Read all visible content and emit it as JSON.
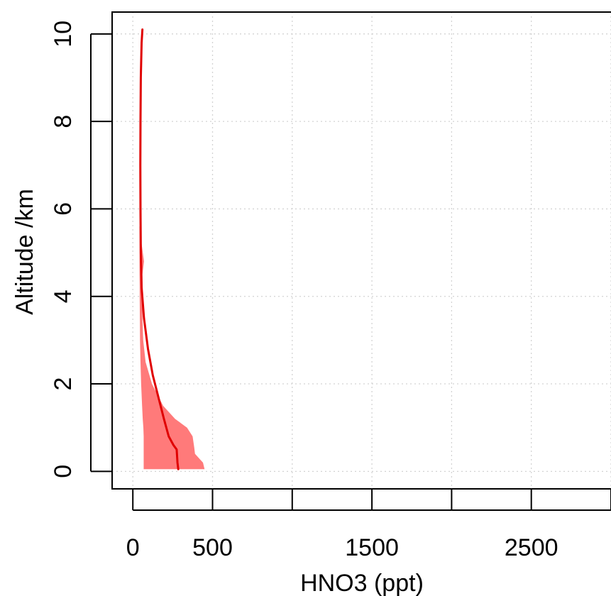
{
  "chart_data": {
    "type": "line",
    "title": "",
    "xlabel": "HNO3 (ppt)",
    "ylabel": "Altitude /km",
    "xlim": [
      -130,
      3000
    ],
    "ylim": [
      -0.4,
      10.5
    ],
    "x_ticks": [
      0,
      500,
      1000,
      1500,
      2000,
      2500,
      3000
    ],
    "x_tick_labels": [
      "0",
      "500",
      "",
      "1500",
      "",
      "2500",
      ""
    ],
    "y_ticks": [
      0,
      2,
      4,
      6,
      8,
      10
    ],
    "y_tick_labels": [
      "0",
      "2",
      "4",
      "6",
      "8",
      "10"
    ],
    "grid": true,
    "series": [
      {
        "type": "line",
        "color": "#e00000",
        "x": [
          285,
          280,
          275,
          255,
          225,
          195,
          160,
          125,
          95,
          70,
          55,
          50,
          48,
          47,
          48,
          50,
          55,
          60
        ],
        "y": [
          0.05,
          0.2,
          0.5,
          0.6,
          0.8,
          1.2,
          1.7,
          2.2,
          2.8,
          3.5,
          4.2,
          5.0,
          6.0,
          7.0,
          8.0,
          9.0,
          9.8,
          10.1
        ]
      },
      {
        "type": "band",
        "color": "#ff7a7a",
        "y": [
          0.05,
          0.2,
          0.4,
          0.55,
          0.8,
          1.0,
          1.2,
          1.5,
          2.0,
          2.5,
          3.0,
          3.5,
          4.0,
          4.5,
          4.8,
          5.2,
          5.6
        ],
        "lower": [
          68,
          68,
          68,
          68,
          68,
          66,
          62,
          58,
          52,
          48,
          45,
          44,
          43,
          42,
          42,
          42,
          42
        ],
        "upper": [
          450,
          440,
          390,
          385,
          375,
          340,
          265,
          190,
          120,
          80,
          65,
          60,
          62,
          60,
          70,
          55,
          45
        ]
      }
    ]
  }
}
